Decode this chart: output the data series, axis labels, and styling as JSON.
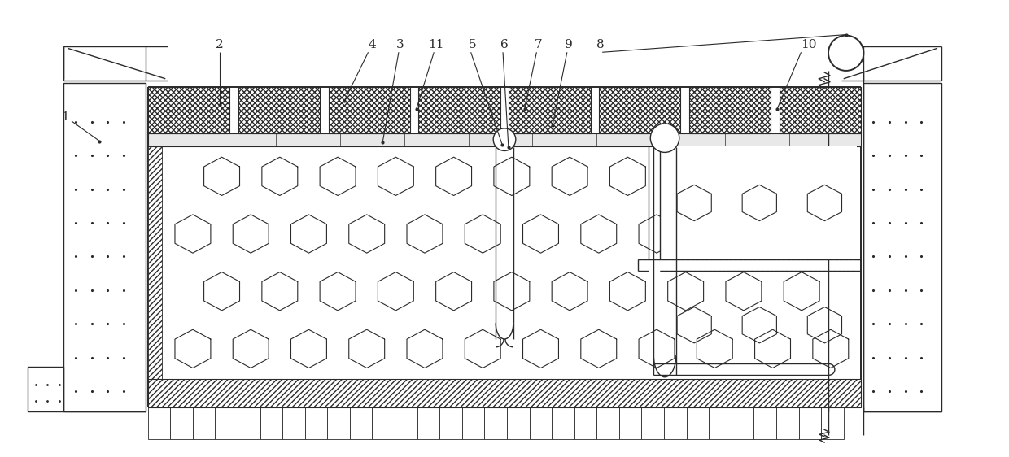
{
  "bg": "#ffffff",
  "lc": "#2a2a2a",
  "fw": 12.4,
  "fh": 5.62,
  "dpi": 100,
  "fs": 11
}
